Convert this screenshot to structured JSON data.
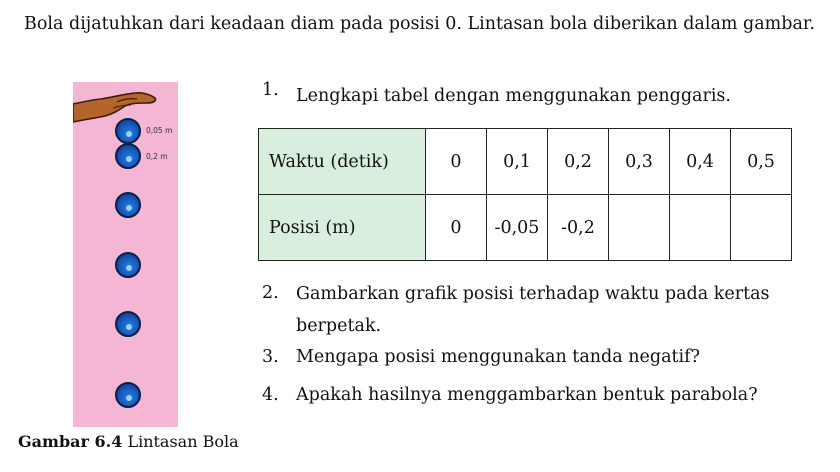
{
  "intro": "Bola dijatuhkan dari keadaan diam pada posisi 0. Lintasan bola diberikan dalam gambar.",
  "figure": {
    "labels": [
      "0,05 m",
      "0,2 m"
    ],
    "caption_bold": "Gambar 6.4",
    "caption_text": " Lintasan Bola",
    "colors": {
      "background": "#f4b6d2",
      "ball": "#1456b8",
      "hand": "#b5652a"
    }
  },
  "questions": [
    {
      "num": "1.",
      "text": "Lengkapi tabel dengan menggunakan penggaris."
    },
    {
      "num": "2.",
      "text": "Gambarkan grafik posisi terhadap waktu pada kertas berpetak."
    },
    {
      "num": "3.",
      "text": "Mengapa posisi menggunakan tanda negatif?"
    },
    {
      "num": "4.",
      "text": "Apakah hasilnya menggambarkan bentuk parabola?"
    }
  ],
  "table": {
    "row1_header": "Waktu (detik)",
    "row1": [
      "0",
      "0,1",
      "0,2",
      "0,3",
      "0,4",
      "0,5"
    ],
    "row2_header": "Posisi (m)",
    "row2": [
      "0",
      "-0,05",
      "-0,2",
      "",
      "",
      ""
    ]
  }
}
